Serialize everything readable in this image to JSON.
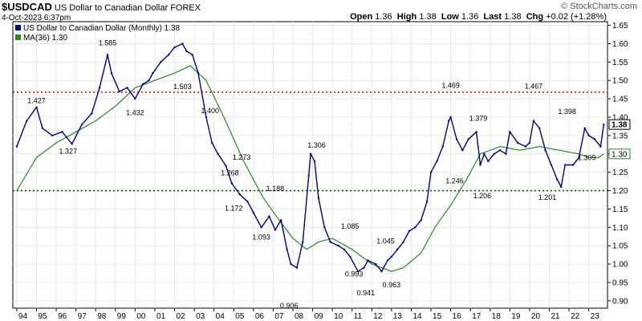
{
  "header": {
    "symbol": "$USDCAD",
    "name": "US Dollar to Canadian Dollar",
    "exchange": "FOREX",
    "datetime": "4-Oct-2023 6:37pm",
    "open_label": "Open",
    "open": "1.36",
    "high_label": "High",
    "high": "1.38",
    "low_label": "Low",
    "low": "1.36",
    "last_label": "Last",
    "last": "1.38",
    "chg_label": "Chg",
    "chg": "+0.02 (+1.28%)",
    "watermark": "© StockCharts.com"
  },
  "legend": {
    "price": "US Dollar to Canadian Dollar (Monthly) 1.38",
    "ma": "MA(36) 1.30"
  },
  "colors": {
    "price": "#000080",
    "ma": "#228B22",
    "resistance": "#CC0000",
    "support": "#006600",
    "grid": "#e6e6e6"
  },
  "chart_data": {
    "type": "line",
    "title": "$USDCAD US Dollar to Canadian Dollar FOREX",
    "ylim": [
      0.88,
      1.66
    ],
    "y_ticks": [
      "1.65",
      "1.60",
      "1.55",
      "1.50",
      "1.45",
      "1.40",
      "1.35",
      "1.30",
      "1.25",
      "1.20",
      "1.15",
      "1.10",
      "1.05",
      "1.00",
      "0.95",
      "0.90"
    ],
    "x_ticks": [
      "94",
      "95",
      "96",
      "97",
      "98",
      "99",
      "00",
      "01",
      "02",
      "03",
      "04",
      "05",
      "06",
      "07",
      "08",
      "09",
      "10",
      "11",
      "12",
      "13",
      "14",
      "15",
      "16",
      "17",
      "18",
      "19",
      "20",
      "21",
      "22",
      "23"
    ],
    "grid": true,
    "legend_position": "top-left",
    "series": [
      {
        "name": "US Dollar to Canadian Dollar (Monthly)",
        "x": [
          1994.0,
          1994.5,
          1995.0,
          1995.3,
          1995.8,
          1996.3,
          1996.8,
          1997.3,
          1997.8,
          1998.2,
          1998.6,
          1998.8,
          1999.2,
          1999.6,
          2000.0,
          2000.4,
          2000.7,
          2000.9,
          2001.3,
          2001.7,
          2002.0,
          2002.4,
          2002.6,
          2002.9,
          2003.2,
          2003.6,
          2003.9,
          2004.2,
          2004.6,
          2004.9,
          2005.3,
          2005.7,
          2006.0,
          2006.4,
          2006.8,
          2007.1,
          2007.4,
          2007.7,
          2007.9,
          2008.2,
          2008.5,
          2008.8,
          2008.9,
          2009.1,
          2009.3,
          2009.6,
          2009.9,
          2010.3,
          2010.6,
          2010.9,
          2011.3,
          2011.6,
          2011.8,
          2012.2,
          2012.5,
          2012.8,
          2013.0,
          2013.3,
          2013.6,
          2013.9,
          2014.2,
          2014.5,
          2014.8,
          2015.0,
          2015.3,
          2015.6,
          2015.9,
          2016.0,
          2016.3,
          2016.6,
          2016.9,
          2017.3,
          2017.5,
          2017.7,
          2017.9,
          2018.2,
          2018.5,
          2018.8,
          2019.0,
          2019.4,
          2019.8,
          2020.0,
          2020.2,
          2020.5,
          2020.8,
          2021.1,
          2021.4,
          2021.6,
          2021.8,
          2022.2,
          2022.5,
          2022.8,
          2023.0,
          2023.3,
          2023.6,
          2023.76
        ],
        "values": [
          1.32,
          1.39,
          1.427,
          1.37,
          1.35,
          1.36,
          1.327,
          1.38,
          1.41,
          1.48,
          1.57,
          1.52,
          1.47,
          1.48,
          1.45,
          1.49,
          1.5,
          1.52,
          1.55,
          1.57,
          1.59,
          1.6,
          1.58,
          1.57,
          1.52,
          1.4,
          1.33,
          1.3,
          1.268,
          1.22,
          1.19,
          1.17,
          1.14,
          1.1,
          1.13,
          1.093,
          1.12,
          1.04,
          1.0,
          0.99,
          1.06,
          1.24,
          1.3,
          1.28,
          1.18,
          1.1,
          1.06,
          1.05,
          1.04,
          1.02,
          0.98,
          0.99,
          1.01,
          1.0,
          0.98,
          1.01,
          1.02,
          1.04,
          1.06,
          1.09,
          1.1,
          1.12,
          1.17,
          1.25,
          1.28,
          1.32,
          1.39,
          1.4,
          1.34,
          1.31,
          1.34,
          1.36,
          1.27,
          1.3,
          1.28,
          1.3,
          1.31,
          1.3,
          1.36,
          1.33,
          1.32,
          1.33,
          1.39,
          1.37,
          1.31,
          1.27,
          1.23,
          1.21,
          1.27,
          1.27,
          1.29,
          1.37,
          1.35,
          1.34,
          1.32,
          1.38
        ]
      },
      {
        "name": "MA(36)",
        "x": [
          1994.0,
          1995.0,
          1996.0,
          1997.0,
          1998.0,
          1999.0,
          2000.0,
          2001.0,
          2002.0,
          2002.8,
          2003.6,
          2004.5,
          2005.5,
          2006.5,
          2007.3,
          2008.0,
          2008.7,
          2009.3,
          2010.0,
          2011.0,
          2012.0,
          2013.0,
          2013.6,
          2014.5,
          2015.2,
          2016.0,
          2016.8,
          2017.5,
          2018.5,
          2019.5,
          2020.5,
          2021.5,
          2022.5,
          2023.0,
          2023.5,
          2023.76
        ],
        "values": [
          1.2,
          1.29,
          1.33,
          1.36,
          1.39,
          1.43,
          1.48,
          1.5,
          1.52,
          1.54,
          1.5,
          1.4,
          1.28,
          1.18,
          1.12,
          1.07,
          1.04,
          1.06,
          1.07,
          1.04,
          1.0,
          0.98,
          0.99,
          1.03,
          1.1,
          1.16,
          1.23,
          1.3,
          1.32,
          1.31,
          1.32,
          1.31,
          1.3,
          1.29,
          1.29,
          1.3
        ]
      }
    ],
    "reference_lines": [
      {
        "y": 1.468,
        "style": "dotted",
        "color": "#CC0000"
      },
      {
        "y": 1.2,
        "style": "dotted",
        "color": "#006600"
      }
    ],
    "annotations": [
      {
        "x": 1995.0,
        "y": 1.427,
        "text": "1.427",
        "pos": "above"
      },
      {
        "x": 1996.6,
        "y": 1.327,
        "text": "1.327",
        "pos": "below"
      },
      {
        "x": 1998.6,
        "y": 1.585,
        "text": "1.585",
        "pos": "above"
      },
      {
        "x": 2000.0,
        "y": 1.432,
        "text": "1.432",
        "pos": "below"
      },
      {
        "x": 2002.4,
        "y": 1.503,
        "text": "1.503",
        "pos": "below"
      },
      {
        "x": 2003.8,
        "y": 1.4,
        "text": "1.400",
        "pos": "above"
      },
      {
        "x": 2005.4,
        "y": 1.273,
        "text": "1.273",
        "pos": "above"
      },
      {
        "x": 2004.8,
        "y": 1.268,
        "text": "1.268",
        "pos": "below"
      },
      {
        "x": 2005.0,
        "y": 1.172,
        "text": "1.172",
        "pos": "below"
      },
      {
        "x": 2007.1,
        "y": 1.188,
        "text": "1.188",
        "pos": "above"
      },
      {
        "x": 2006.4,
        "y": 1.093,
        "text": "1.093",
        "pos": "below"
      },
      {
        "x": 2007.8,
        "y": 0.906,
        "text": "0.906",
        "pos": "below"
      },
      {
        "x": 2009.2,
        "y": 1.306,
        "text": "1.306",
        "pos": "above"
      },
      {
        "x": 2010.9,
        "y": 1.085,
        "text": "1.085",
        "pos": "above"
      },
      {
        "x": 2011.1,
        "y": 0.993,
        "text": "0.993",
        "pos": "below"
      },
      {
        "x": 2012.7,
        "y": 1.045,
        "text": "1.045",
        "pos": "above"
      },
      {
        "x": 2011.7,
        "y": 0.941,
        "text": "0.941",
        "pos": "below"
      },
      {
        "x": 2013.0,
        "y": 0.963,
        "text": "0.963",
        "pos": "below"
      },
      {
        "x": 2016.0,
        "y": 1.469,
        "text": "1.469",
        "pos": "above"
      },
      {
        "x": 2016.2,
        "y": 1.246,
        "text": "1.246",
        "pos": "below"
      },
      {
        "x": 2017.4,
        "y": 1.379,
        "text": "1.379",
        "pos": "above"
      },
      {
        "x": 2017.6,
        "y": 1.206,
        "text": "1.206",
        "pos": "below"
      },
      {
        "x": 2020.2,
        "y": 1.467,
        "text": "1.467",
        "pos": "above"
      },
      {
        "x": 2020.9,
        "y": 1.201,
        "text": "1.201",
        "pos": "below"
      },
      {
        "x": 2021.9,
        "y": 1.398,
        "text": "1.398",
        "pos": "above"
      },
      {
        "x": 2022.9,
        "y": 1.309,
        "text": "1.309",
        "pos": "below"
      }
    ],
    "last_value_tags": [
      {
        "text": "1.38",
        "y": 1.38,
        "style": "price"
      },
      {
        "text": "1.30",
        "y": 1.3,
        "style": "ma"
      }
    ]
  }
}
